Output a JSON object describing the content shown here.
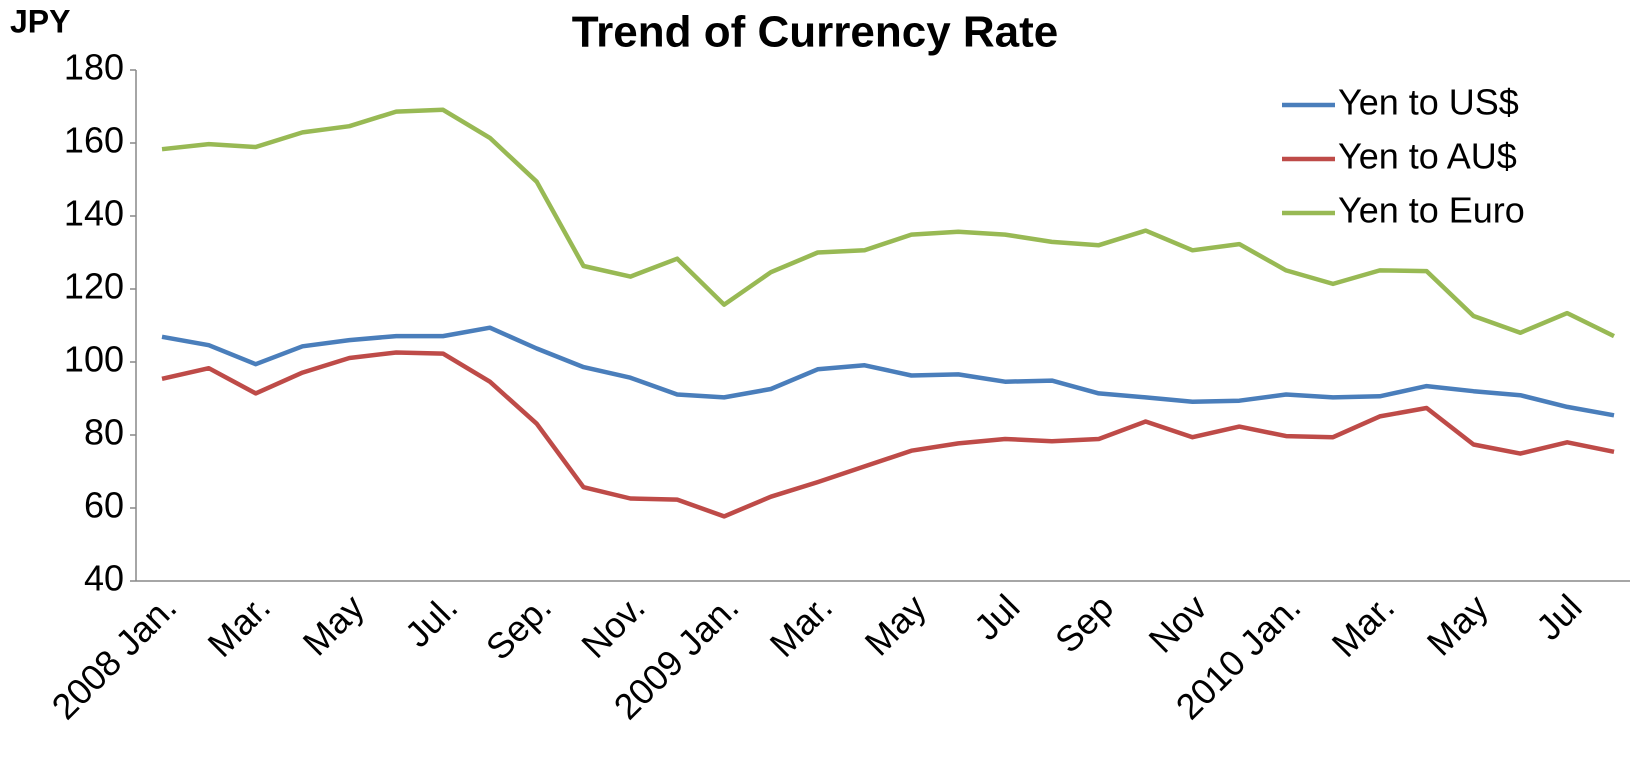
{
  "chart_data": {
    "type": "line",
    "title": "Trend of Currency Rate",
    "y_label": "JPY",
    "categories": [
      "2008 Jan.",
      null,
      "Mar.",
      null,
      "May",
      null,
      "Jul.",
      null,
      "Sep.",
      null,
      "Nov.",
      null,
      "2009 Jan.",
      null,
      "Mar.",
      null,
      "May",
      null,
      "Jul",
      null,
      "Sep",
      null,
      "Nov",
      null,
      "2010 Jan.",
      null,
      "Mar.",
      null,
      "May",
      null,
      "Jul",
      null
    ],
    "series": [
      {
        "name": "Yen to US$",
        "color": "#4a7ebb",
        "values": [
          106.9,
          104.6,
          99.4,
          104.3,
          106.0,
          107.1,
          107.1,
          109.4,
          103.7,
          98.6,
          95.7,
          91.1,
          90.3,
          92.6,
          98.0,
          99.1,
          96.3,
          96.6,
          94.6,
          94.9,
          91.4,
          90.3,
          89.1,
          89.4,
          91.1,
          90.3,
          90.6,
          93.4,
          92.0,
          90.9,
          87.7,
          85.4
        ]
      },
      {
        "name": "Yen to AU$",
        "color": "#be4b48",
        "values": [
          95.4,
          98.3,
          91.4,
          97.1,
          101.1,
          102.6,
          102.3,
          94.6,
          83.1,
          65.7,
          62.6,
          62.3,
          57.7,
          63.1,
          67.1,
          71.4,
          75.7,
          77.7,
          78.9,
          78.3,
          78.9,
          83.7,
          79.4,
          82.3,
          79.7,
          79.4,
          85.1,
          87.4,
          77.4,
          74.9,
          78.0,
          75.4
        ]
      },
      {
        "name": "Yen to Euro",
        "color": "#98b954",
        "values": [
          158.3,
          159.7,
          158.9,
          162.9,
          164.6,
          168.6,
          169.1,
          161.4,
          149.4,
          126.3,
          123.4,
          128.3,
          115.7,
          124.6,
          130.0,
          130.6,
          134.9,
          135.7,
          134.9,
          132.9,
          132.0,
          136.0,
          130.6,
          132.3,
          125.1,
          121.4,
          125.1,
          124.9,
          112.6,
          108.0,
          113.4,
          107.1
        ]
      }
    ],
    "ylim": [
      40,
      180
    ],
    "yticks": [
      40,
      60,
      80,
      100,
      120,
      140,
      160,
      180
    ],
    "legend": "upper right"
  }
}
